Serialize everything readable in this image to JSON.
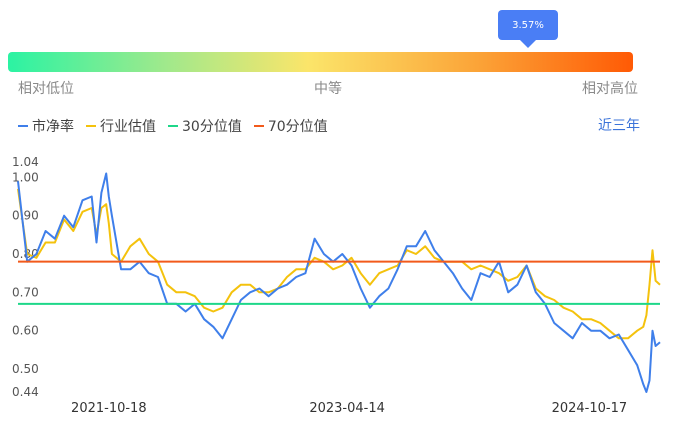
{
  "indicator": {
    "percentile_label": "3.57%",
    "percentile": 0.0357,
    "left_label": "相对低位",
    "mid_label": "中等",
    "right_label": "相对高位"
  },
  "range_button": "近三年",
  "colors": {
    "pb": "#3f7fea",
    "industry": "#f4c20d",
    "p30": "#1ed789",
    "p70": "#f25a1b"
  },
  "chart_data": {
    "type": "line",
    "legend": [
      "市净率",
      "行业估值",
      "30分位值",
      "70分位值"
    ],
    "yticks": [
      1.04,
      1.0,
      0.9,
      0.8,
      0.7,
      0.6,
      0.5,
      0.44
    ],
    "ytick_labels": [
      "1.04",
      "1.00",
      "0.90",
      "0.80",
      "0.70",
      "0.60",
      "0.50",
      "0.44"
    ],
    "ylim": [
      0.44,
      1.04
    ],
    "xlim": [
      "2021-03-25",
      "2025-03-27"
    ],
    "xticks": [
      "2021-10-18",
      "2023-04-14",
      "2024-10-17"
    ],
    "p30": 0.67,
    "p70": 0.78,
    "series": [
      {
        "name": "市净率",
        "x": [
          "2021-03-25",
          "2021-04-15",
          "2021-05-06",
          "2021-05-27",
          "2021-06-17",
          "2021-07-08",
          "2021-07-29",
          "2021-08-19",
          "2021-09-09",
          "2021-09-20",
          "2021-10-01",
          "2021-10-12",
          "2021-10-18",
          "2021-10-25",
          "2021-11-15",
          "2021-12-06",
          "2021-12-27",
          "2022-01-17",
          "2022-02-07",
          "2022-02-28",
          "2022-03-21",
          "2022-04-11",
          "2022-05-02",
          "2022-05-23",
          "2022-06-13",
          "2022-07-04",
          "2022-07-25",
          "2022-08-15",
          "2022-09-05",
          "2022-09-26",
          "2022-10-17",
          "2022-11-07",
          "2022-11-28",
          "2022-12-19",
          "2023-01-09",
          "2023-01-30",
          "2023-02-20",
          "2023-03-13",
          "2023-04-03",
          "2023-04-24",
          "2023-05-15",
          "2023-06-05",
          "2023-06-26",
          "2023-07-17",
          "2023-08-07",
          "2023-08-28",
          "2023-09-18",
          "2023-10-09",
          "2023-10-30",
          "2023-11-20",
          "2023-12-11",
          "2024-01-01",
          "2024-01-22",
          "2024-02-12",
          "2024-03-04",
          "2024-03-25",
          "2024-04-15",
          "2024-05-06",
          "2024-05-27",
          "2024-06-17",
          "2024-07-08",
          "2024-07-29",
          "2024-08-19",
          "2024-09-09",
          "2024-09-30",
          "2024-10-21",
          "2024-11-11",
          "2024-12-02",
          "2024-12-23",
          "2025-01-13",
          "2025-02-03",
          "2025-02-17",
          "2025-02-24",
          "2025-03-03",
          "2025-03-10",
          "2025-03-17",
          "2025-03-27"
        ],
        "values": [
          0.99,
          0.78,
          0.8,
          0.86,
          0.84,
          0.9,
          0.87,
          0.94,
          0.95,
          0.83,
          0.96,
          1.01,
          0.95,
          0.9,
          0.76,
          0.76,
          0.78,
          0.75,
          0.74,
          0.67,
          0.67,
          0.65,
          0.67,
          0.63,
          0.61,
          0.58,
          0.63,
          0.68,
          0.7,
          0.71,
          0.69,
          0.71,
          0.72,
          0.74,
          0.75,
          0.84,
          0.8,
          0.78,
          0.8,
          0.77,
          0.71,
          0.66,
          0.69,
          0.71,
          0.76,
          0.82,
          0.82,
          0.86,
          0.81,
          0.78,
          0.75,
          0.71,
          0.68,
          0.75,
          0.74,
          0.78,
          0.7,
          0.72,
          0.77,
          0.7,
          0.67,
          0.62,
          0.6,
          0.58,
          0.62,
          0.6,
          0.6,
          0.58,
          0.59,
          0.55,
          0.51,
          0.46,
          0.44,
          0.47,
          0.6,
          0.56,
          0.57
        ]
      },
      {
        "name": "行业估值",
        "x": [
          "2021-03-25",
          "2021-04-15",
          "2021-05-06",
          "2021-05-27",
          "2021-06-17",
          "2021-07-08",
          "2021-07-29",
          "2021-08-19",
          "2021-09-09",
          "2021-09-20",
          "2021-10-01",
          "2021-10-12",
          "2021-10-18",
          "2021-10-25",
          "2021-11-15",
          "2021-12-06",
          "2021-12-27",
          "2022-01-17",
          "2022-02-07",
          "2022-02-28",
          "2022-03-21",
          "2022-04-11",
          "2022-05-02",
          "2022-05-23",
          "2022-06-13",
          "2022-07-04",
          "2022-07-25",
          "2022-08-15",
          "2022-09-05",
          "2022-09-26",
          "2022-10-17",
          "2022-11-07",
          "2022-11-28",
          "2022-12-19",
          "2023-01-09",
          "2023-01-30",
          "2023-02-20",
          "2023-03-13",
          "2023-04-03",
          "2023-04-24",
          "2023-05-15",
          "2023-06-05",
          "2023-06-26",
          "2023-07-17",
          "2023-08-07",
          "2023-08-28",
          "2023-09-18",
          "2023-10-09",
          "2023-10-30",
          "2023-11-20",
          "2023-12-11",
          "2024-01-01",
          "2024-01-22",
          "2024-02-12",
          "2024-03-04",
          "2024-03-25",
          "2024-04-15",
          "2024-05-06",
          "2024-05-27",
          "2024-06-17",
          "2024-07-08",
          "2024-07-29",
          "2024-08-19",
          "2024-09-09",
          "2024-09-30",
          "2024-10-21",
          "2024-11-11",
          "2024-12-02",
          "2024-12-23",
          "2025-01-13",
          "2025-02-03",
          "2025-02-17",
          "2025-02-24",
          "2025-03-03",
          "2025-03-10",
          "2025-03-17",
          "2025-03-27"
        ],
        "values": [
          0.97,
          0.8,
          0.79,
          0.83,
          0.83,
          0.89,
          0.86,
          0.91,
          0.92,
          0.85,
          0.92,
          0.93,
          0.88,
          0.8,
          0.78,
          0.82,
          0.84,
          0.8,
          0.78,
          0.72,
          0.7,
          0.7,
          0.69,
          0.66,
          0.65,
          0.66,
          0.7,
          0.72,
          0.72,
          0.7,
          0.7,
          0.71,
          0.74,
          0.76,
          0.76,
          0.79,
          0.78,
          0.76,
          0.77,
          0.79,
          0.75,
          0.72,
          0.75,
          0.76,
          0.77,
          0.81,
          0.8,
          0.82,
          0.79,
          0.78,
          0.78,
          0.78,
          0.76,
          0.77,
          0.76,
          0.75,
          0.73,
          0.74,
          0.77,
          0.71,
          0.69,
          0.68,
          0.66,
          0.65,
          0.63,
          0.63,
          0.62,
          0.6,
          0.58,
          0.58,
          0.6,
          0.61,
          0.64,
          0.72,
          0.81,
          0.73,
          0.72
        ]
      }
    ]
  }
}
